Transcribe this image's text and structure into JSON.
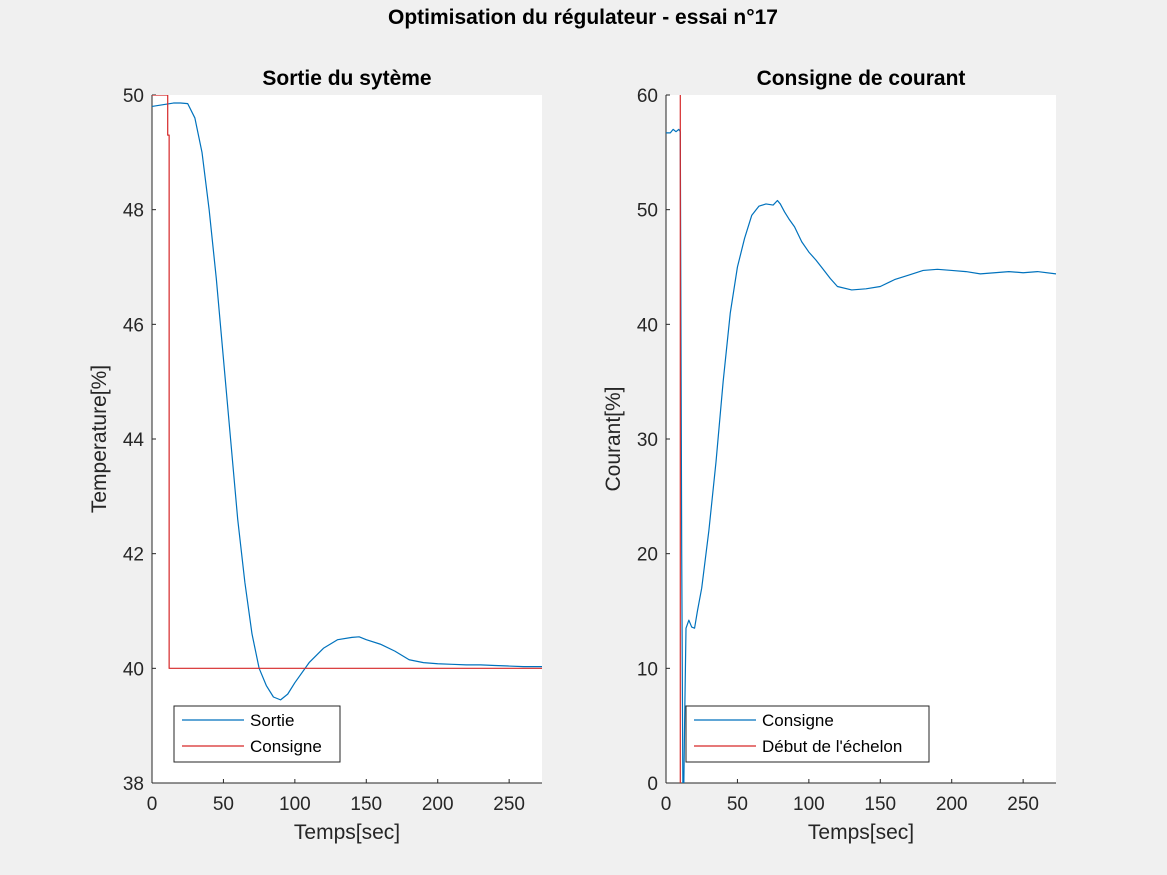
{
  "window": {
    "suptitle": "Optimisation du régulateur - essai n°17"
  },
  "chart_data": [
    {
      "type": "line",
      "title": "Sortie du sytème",
      "xlabel": "Temps[sec]",
      "ylabel": "Temperature[%]",
      "xlim": [
        0,
        273
      ],
      "ylim": [
        38,
        50
      ],
      "xticks": [
        0,
        50,
        100,
        150,
        200,
        250
      ],
      "yticks": [
        38,
        40,
        42,
        44,
        46,
        48,
        50
      ],
      "grid": false,
      "legend_position": "bottom-left",
      "series": [
        {
          "name": "Sortie",
          "color": "#0072bd",
          "x": [
            0,
            5,
            10,
            15,
            20,
            25,
            30,
            35,
            40,
            45,
            50,
            55,
            60,
            65,
            70,
            75,
            80,
            85,
            90,
            95,
            100,
            110,
            120,
            130,
            140,
            145,
            150,
            160,
            170,
            180,
            190,
            200,
            210,
            220,
            230,
            240,
            250,
            260,
            273
          ],
          "y": [
            49.8,
            49.82,
            49.84,
            49.86,
            49.86,
            49.85,
            49.6,
            49.0,
            48.0,
            46.8,
            45.4,
            44.0,
            42.6,
            41.5,
            40.6,
            40.0,
            39.7,
            39.5,
            39.45,
            39.55,
            39.75,
            40.1,
            40.35,
            40.5,
            40.54,
            40.55,
            40.5,
            40.42,
            40.3,
            40.15,
            40.1,
            40.08,
            40.07,
            40.06,
            40.06,
            40.05,
            40.04,
            40.03,
            40.03
          ]
        },
        {
          "name": "Consigne",
          "color": "#d62728",
          "x": [
            0,
            11,
            11,
            12,
            12,
            273
          ],
          "y": [
            50,
            50,
            49.3,
            49.3,
            40,
            40
          ]
        }
      ]
    },
    {
      "type": "line",
      "title": "Consigne de courant",
      "xlabel": "Temps[sec]",
      "ylabel": "Courant[%]",
      "xlim": [
        0,
        273
      ],
      "ylim": [
        0,
        60
      ],
      "xticks": [
        0,
        50,
        100,
        150,
        200,
        250
      ],
      "yticks": [
        0,
        10,
        20,
        30,
        40,
        50,
        60
      ],
      "grid": false,
      "legend_position": "bottom-left",
      "series": [
        {
          "name": "Consigne",
          "color": "#0072bd",
          "x": [
            0,
            3,
            5,
            7,
            9,
            10,
            11,
            12,
            13,
            14,
            16,
            18,
            20,
            22,
            25,
            30,
            35,
            40,
            45,
            50,
            55,
            60,
            65,
            70,
            75,
            78,
            80,
            83,
            86,
            90,
            95,
            100,
            105,
            110,
            115,
            120,
            130,
            140,
            150,
            160,
            170,
            180,
            190,
            200,
            210,
            220,
            230,
            240,
            250,
            260,
            273
          ],
          "y": [
            56.7,
            56.7,
            57.0,
            56.8,
            57.0,
            56.8,
            20,
            -5,
            5,
            13.5,
            14.2,
            13.6,
            13.5,
            15,
            17,
            22,
            28,
            35,
            41,
            45,
            47.5,
            49.5,
            50.3,
            50.5,
            50.4,
            50.8,
            50.5,
            49.8,
            49.2,
            48.5,
            47.2,
            46.3,
            45.6,
            44.8,
            44.0,
            43.3,
            43.0,
            43.1,
            43.3,
            43.9,
            44.3,
            44.7,
            44.8,
            44.7,
            44.6,
            44.4,
            44.5,
            44.6,
            44.5,
            44.6,
            44.4
          ]
        },
        {
          "name": "Début de l'échelon",
          "color": "#d62728",
          "x": [
            10,
            10
          ],
          "y": [
            0,
            60
          ]
        }
      ]
    }
  ]
}
